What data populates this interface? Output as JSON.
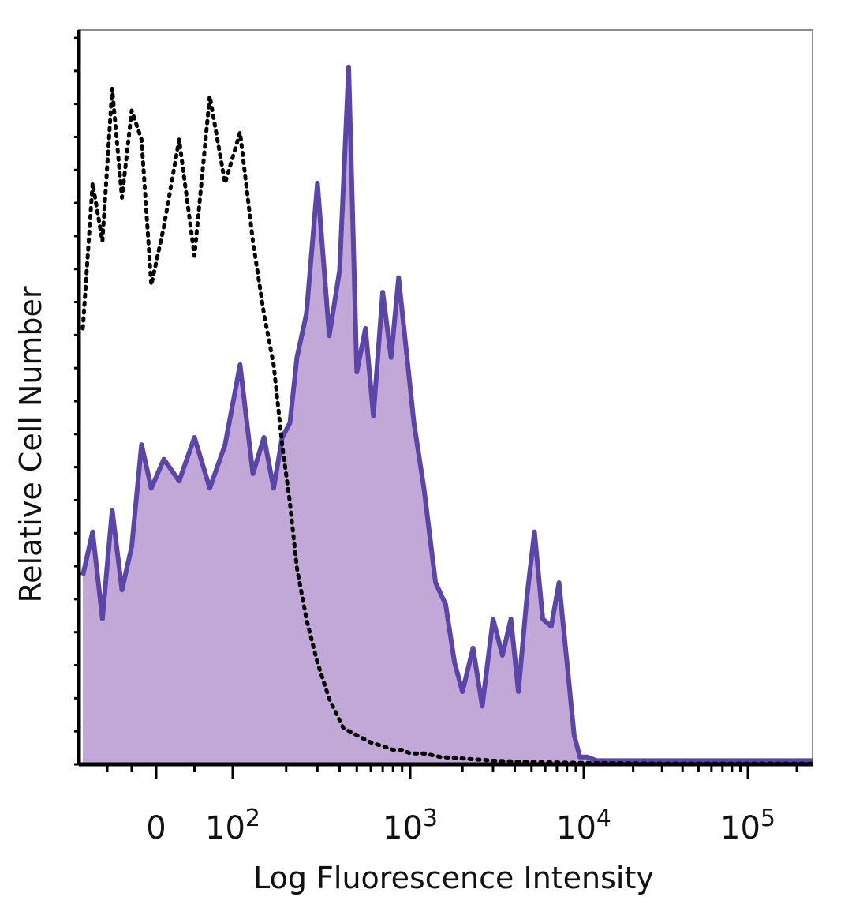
{
  "chart_data": {
    "type": "area",
    "title": "",
    "xlabel": "Log Fluorescence Intensity",
    "ylabel": "Relative Cell Number",
    "x_scale": "biexponential",
    "x_tick_labels": [
      {
        "value": 0,
        "base": "0",
        "exp": ""
      },
      {
        "value": 100,
        "base": "10",
        "exp": "2"
      },
      {
        "value": 1000,
        "base": "10",
        "exp": "3"
      },
      {
        "value": 10000,
        "base": "10",
        "exp": "4"
      },
      {
        "value": 100000,
        "base": "10",
        "exp": "5"
      }
    ],
    "xlim": [
      -150,
      250000
    ],
    "ylim": [
      0,
      100
    ],
    "grid": false,
    "legend": "none",
    "series": [
      {
        "style": "dotted",
        "color": "#000000",
        "fill": "none",
        "x": [
          -150,
          -130,
          -110,
          -90,
          -70,
          -50,
          -30,
          -10,
          10,
          30,
          50,
          70,
          90,
          110,
          130,
          150,
          170,
          190,
          210,
          230,
          260,
          300,
          350,
          420,
          500,
          600,
          700,
          800,
          900,
          1000,
          1200,
          1500,
          2000,
          3000,
          5000,
          10000,
          30000,
          250000
        ],
        "y": [
          60,
          80,
          72,
          93,
          78,
          90,
          86,
          66,
          74,
          86,
          70,
          92,
          80,
          87,
          72,
          62,
          55,
          44,
          36,
          27,
          20,
          14,
          9,
          5,
          4,
          3,
          2.5,
          2,
          2,
          1.5,
          1.5,
          1,
          0.8,
          0.5,
          0.3,
          0.2,
          0.1,
          0.1
        ]
      },
      {
        "style": "solid",
        "color": "#5a45a8",
        "fill": "#c2a8d6",
        "x": [
          -150,
          -130,
          -110,
          -90,
          -70,
          -50,
          -30,
          -10,
          10,
          30,
          50,
          70,
          90,
          110,
          130,
          150,
          170,
          190,
          210,
          230,
          260,
          300,
          350,
          400,
          450,
          500,
          560,
          620,
          700,
          780,
          860,
          950,
          1050,
          1200,
          1400,
          1600,
          1800,
          2000,
          2300,
          2600,
          3000,
          3400,
          3800,
          4200,
          4700,
          5200,
          5800,
          6500,
          7200,
          8000,
          8800,
          9500,
          10500,
          12000,
          20000,
          50000,
          250000
        ],
        "y": [
          26,
          32,
          20,
          35,
          24,
          30,
          44,
          38,
          42,
          39,
          45,
          38,
          44,
          55,
          40,
          45,
          38,
          45,
          47,
          56,
          62,
          80,
          59,
          68,
          96,
          54,
          60,
          48,
          65,
          56,
          67,
          57,
          47,
          38,
          25,
          22,
          14,
          10,
          16,
          8,
          20,
          15,
          20,
          10,
          23,
          32,
          20,
          19,
          25,
          14,
          4,
          1,
          1,
          0.5,
          0.5,
          0.5,
          0.5
        ]
      }
    ]
  }
}
